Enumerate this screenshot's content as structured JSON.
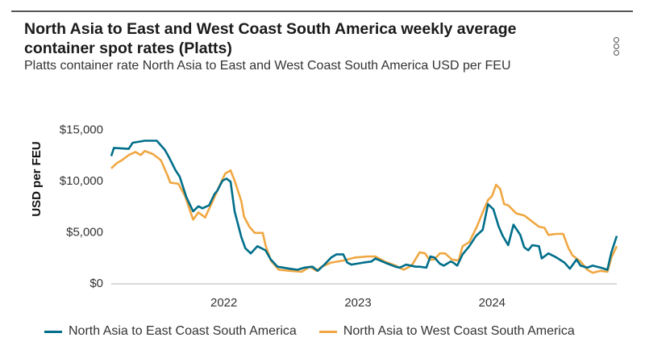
{
  "title": "North Asia to East and West Coast South America weekly average container spot rates (Platts)",
  "subtitle": "Platts container rate North Asia to East and West Coast South America USD per FEU",
  "chart_data": {
    "type": "line",
    "title": "North Asia to East and West Coast South America weekly average container spot rates (Platts)",
    "ylabel": "USD per FEU",
    "xlabel": "",
    "ylim": [
      0,
      15000
    ],
    "xlim": [
      2021.16,
      2024.93
    ],
    "yticks": [
      {
        "v": 0,
        "label": "$0"
      },
      {
        "v": 5000,
        "label": "$5,000"
      },
      {
        "v": 10000,
        "label": "$10,000"
      },
      {
        "v": 15000,
        "label": "$15,000"
      }
    ],
    "xticks": [
      {
        "v": 2022,
        "label": "2022"
      },
      {
        "v": 2023,
        "label": "2023"
      },
      {
        "v": 2024,
        "label": "2024"
      }
    ],
    "legend": "bottom",
    "series": [
      {
        "name": "North Asia to East Coast South America",
        "color": "#006e8a",
        "x": [
          2021.16,
          2021.18,
          2021.29,
          2021.32,
          2021.41,
          2021.5,
          2021.56,
          2021.59,
          2021.64,
          2021.67,
          2021.72,
          2021.77,
          2021.81,
          2021.84,
          2021.89,
          2021.93,
          2021.95,
          2021.99,
          2022.02,
          2022.05,
          2022.08,
          2022.13,
          2022.16,
          2022.2,
          2022.25,
          2022.31,
          2022.35,
          2022.4,
          2022.49,
          2022.55,
          2022.6,
          2022.66,
          2022.7,
          2022.75,
          2022.8,
          2022.84,
          2022.89,
          2022.92,
          2022.95,
          2023.04,
          2023.1,
          2023.13,
          2023.2,
          2023.28,
          2023.31,
          2023.36,
          2023.43,
          2023.46,
          2023.51,
          2023.54,
          2023.57,
          2023.61,
          2023.64,
          2023.69,
          2023.71,
          2023.74,
          2023.78,
          2023.83,
          2023.88,
          2023.93,
          2023.97,
          2024.01,
          2024.05,
          2024.08,
          2024.12,
          2024.16,
          2024.21,
          2024.24,
          2024.27,
          2024.3,
          2024.35,
          2024.37,
          2024.42,
          2024.48,
          2024.54,
          2024.58,
          2024.63,
          2024.66,
          2024.71,
          2024.75,
          2024.81,
          2024.86,
          2024.89,
          2024.93
        ],
        "y": [
          12400,
          13200,
          13100,
          13700,
          13900,
          13900,
          13000,
          12300,
          11000,
          10400,
          8400,
          7000,
          7500,
          7300,
          7600,
          8700,
          9000,
          10000,
          10200,
          9900,
          7000,
          4500,
          3400,
          2900,
          3600,
          3200,
          2300,
          1600,
          1400,
          1300,
          1500,
          1600,
          1200,
          1800,
          2500,
          2800,
          2800,
          2000,
          1800,
          2000,
          2100,
          2400,
          2000,
          1600,
          1500,
          1800,
          1600,
          1600,
          1500,
          2600,
          2500,
          1900,
          1700,
          2100,
          2000,
          1700,
          2800,
          3600,
          4600,
          5200,
          7700,
          7200,
          5500,
          4600,
          3700,
          5700,
          4700,
          3500,
          3200,
          3700,
          3600,
          2400,
          2900,
          2500,
          2000,
          1400,
          2300,
          1700,
          1500,
          1700,
          1500,
          1300,
          3000,
          4600
        ]
      },
      {
        "name": "North Asia to West Coast South America",
        "color": "#f0a742",
        "x": [
          2021.16,
          2021.2,
          2021.24,
          2021.29,
          2021.34,
          2021.38,
          2021.41,
          2021.47,
          2021.53,
          2021.58,
          2021.6,
          2021.66,
          2021.71,
          2021.77,
          2021.81,
          2021.86,
          2021.93,
          2021.96,
          2022.01,
          2022.05,
          2022.08,
          2022.13,
          2022.15,
          2022.19,
          2022.23,
          2022.29,
          2022.31,
          2022.35,
          2022.41,
          2022.49,
          2022.58,
          2022.64,
          2022.69,
          2022.73,
          2022.8,
          2022.89,
          2022.98,
          2023.07,
          2023.13,
          2023.2,
          2023.28,
          2023.34,
          2023.4,
          2023.46,
          2023.5,
          2023.53,
          2023.57,
          2023.61,
          2023.65,
          2023.7,
          2023.75,
          2023.78,
          2023.83,
          2023.89,
          2023.93,
          2023.97,
          2024.0,
          2024.03,
          2024.06,
          2024.09,
          2024.12,
          2024.18,
          2024.24,
          2024.3,
          2024.35,
          2024.39,
          2024.42,
          2024.48,
          2024.53,
          2024.57,
          2024.6,
          2024.66,
          2024.71,
          2024.75,
          2024.81,
          2024.86,
          2024.89,
          2024.93
        ],
        "y": [
          11200,
          11700,
          12000,
          12500,
          12800,
          12500,
          12900,
          12600,
          12000,
          10500,
          9800,
          9700,
          8500,
          6200,
          6900,
          6400,
          8400,
          9300,
          10700,
          11000,
          10000,
          8000,
          6500,
          5500,
          4900,
          4900,
          3700,
          2200,
          1300,
          1200,
          1100,
          1600,
          1200,
          1600,
          2000,
          2200,
          2500,
          2600,
          2600,
          2100,
          1700,
          1300,
          1700,
          3000,
          2900,
          2300,
          2300,
          2900,
          2900,
          2300,
          2200,
          3600,
          4000,
          5600,
          6900,
          8100,
          8500,
          9600,
          9200,
          7700,
          7600,
          6800,
          6600,
          6000,
          5500,
          5400,
          4700,
          4800,
          4800,
          3400,
          2700,
          2100,
          1300,
          1000,
          1200,
          1100,
          2500,
          3600
        ]
      }
    ]
  }
}
